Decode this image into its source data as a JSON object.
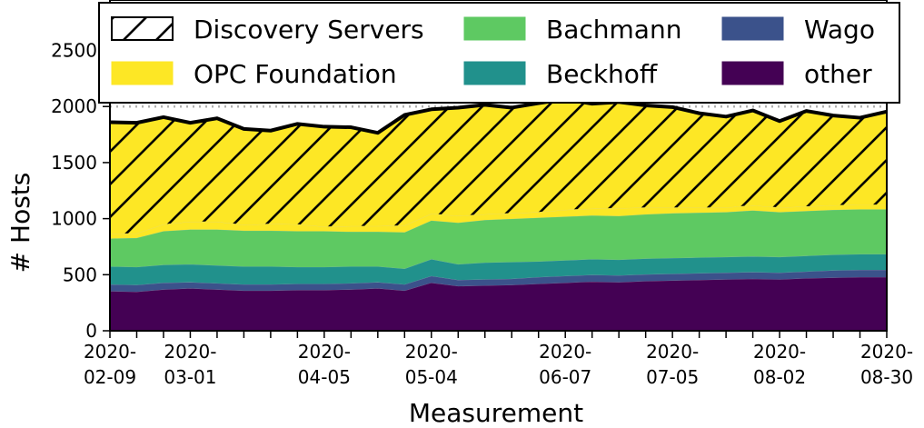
{
  "chart_data": {
    "type": "area",
    "title": "",
    "xlabel": "Measurement",
    "ylabel": "# Hosts",
    "ylim": [
      0,
      2950
    ],
    "yticks": [
      0,
      500,
      1000,
      1500,
      2000,
      2500
    ],
    "grid": "horizontal dotted at 500, 1500, 2000",
    "legend_position": "top",
    "x": [
      "2020-02-09",
      "2020-02-16",
      "2020-02-23",
      "2020-03-01",
      "2020-03-08",
      "2020-03-15",
      "2020-03-22",
      "2020-03-29",
      "2020-04-05",
      "2020-04-12",
      "2020-04-19",
      "2020-04-26",
      "2020-05-04",
      "2020-05-10",
      "2020-05-17",
      "2020-05-24",
      "2020-05-31",
      "2020-06-07",
      "2020-06-14",
      "2020-06-21",
      "2020-06-28",
      "2020-07-05",
      "2020-07-12",
      "2020-07-19",
      "2020-07-26",
      "2020-08-02",
      "2020-08-09",
      "2020-08-16",
      "2020-08-23",
      "2020-08-30"
    ],
    "xtick_labels": [
      {
        "x": "2020-02-09",
        "line1": "2020-",
        "line2": "02-09"
      },
      {
        "x": "2020-03-01",
        "line1": "2020-",
        "line2": "03-01"
      },
      {
        "x": "2020-04-05",
        "line1": "2020-",
        "line2": "04-05"
      },
      {
        "x": "2020-05-04",
        "line1": "2020-",
        "line2": "05-04"
      },
      {
        "x": "2020-06-07",
        "line1": "2020-",
        "line2": "06-07"
      },
      {
        "x": "2020-07-05",
        "line1": "2020-",
        "line2": "07-05"
      },
      {
        "x": "2020-08-02",
        "line1": "2020-",
        "line2": "08-02"
      },
      {
        "x": "2020-08-30",
        "line1": "2020-",
        "line2": "08-30"
      }
    ],
    "series": [
      {
        "name": "other",
        "color": "#440154",
        "values": [
          355,
          350,
          370,
          380,
          370,
          360,
          360,
          365,
          365,
          370,
          380,
          360,
          430,
          400,
          405,
          410,
          420,
          430,
          440,
          435,
          445,
          450,
          455,
          460,
          465,
          460,
          470,
          475,
          480,
          480
        ]
      },
      {
        "name": "Wago",
        "color": "#3b528b",
        "values": [
          60,
          60,
          60,
          55,
          55,
          55,
          55,
          55,
          55,
          55,
          55,
          55,
          60,
          55,
          55,
          55,
          60,
          60,
          60,
          60,
          60,
          60,
          60,
          60,
          60,
          60,
          60,
          65,
          65,
          65
        ]
      },
      {
        "name": "Beckhoff",
        "color": "#21918c",
        "values": [
          160,
          160,
          160,
          160,
          160,
          160,
          160,
          150,
          150,
          150,
          140,
          140,
          150,
          140,
          150,
          150,
          140,
          140,
          140,
          140,
          140,
          140,
          140,
          140,
          140,
          140,
          140,
          140,
          140,
          140
        ]
      },
      {
        "name": "Bachmann",
        "color": "#5ec962",
        "values": [
          250,
          260,
          300,
          310,
          320,
          320,
          320,
          320,
          320,
          310,
          310,
          325,
          345,
          370,
          380,
          385,
          390,
          390,
          390,
          390,
          395,
          400,
          400,
          400,
          410,
          400,
          400,
          400,
          400,
          400
        ]
      },
      {
        "name": "OPC Foundation",
        "color": "#fde725",
        "hatch": false,
        "values": [
          40,
          40,
          60,
          70,
          70,
          50,
          60,
          60,
          40,
          50,
          50,
          60,
          60,
          60,
          50,
          50,
          50,
          60,
          60,
          70,
          60,
          50,
          45,
          40,
          45,
          40,
          40,
          40,
          40,
          40
        ]
      },
      {
        "name": "Discovery Servers",
        "color": "#fde725",
        "hatch": true,
        "values": [
          995,
          985,
          955,
          880,
          920,
          855,
          830,
          895,
          890,
          880,
          830,
          985,
          930,
          965,
          975,
          940,
          970,
          985,
          935,
          945,
          910,
          895,
          840,
          810,
          845,
          770,
          850,
          800,
          775,
          830
        ]
      },
      {
        "name": "total",
        "color": "#000000",
        "legend": false,
        "values": [
          1860,
          1855,
          1905,
          1855,
          1895,
          1800,
          1785,
          1845,
          1820,
          1815,
          1765,
          1925,
          1975,
          1990,
          2015,
          1990,
          2030,
          2065,
          2025,
          2040,
          2010,
          1995,
          1940,
          1910,
          1965,
          1870,
          1960,
          1920,
          1900,
          1955
        ]
      }
    ],
    "legend": [
      {
        "name": "Discovery Servers",
        "color": "#ffffff",
        "hatch": true
      },
      {
        "name": "Bachmann",
        "color": "#5ec962"
      },
      {
        "name": "Wago",
        "color": "#3b528b"
      },
      {
        "name": "OPC Foundation",
        "color": "#fde725"
      },
      {
        "name": "Beckhoff",
        "color": "#21918c"
      },
      {
        "name": "other",
        "color": "#440154"
      }
    ]
  }
}
